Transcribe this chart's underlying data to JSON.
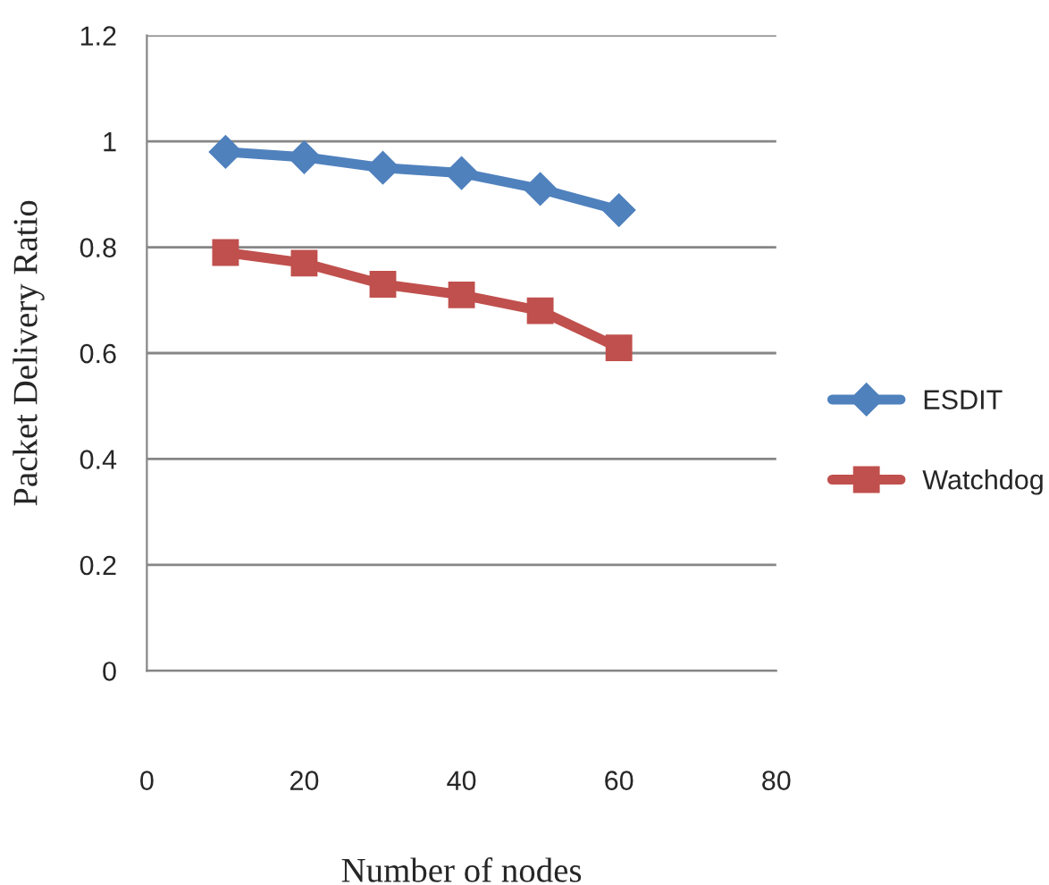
{
  "chart_data": {
    "type": "line",
    "xlabel": "Number of nodes",
    "ylabel": "Packet Delivery Ratio",
    "x": [
      10,
      20,
      30,
      40,
      50,
      60
    ],
    "series": [
      {
        "name": "ESDIT",
        "color": "#4f81bd",
        "marker": "diamond",
        "values": [
          0.98,
          0.97,
          0.95,
          0.94,
          0.91,
          0.87
        ]
      },
      {
        "name": "Watchdog",
        "color": "#c0504d",
        "marker": "square",
        "values": [
          0.79,
          0.77,
          0.73,
          0.71,
          0.68,
          0.61
        ]
      }
    ],
    "xlim": [
      0,
      80
    ],
    "xticks": [
      0,
      20,
      40,
      60,
      80
    ],
    "ylim": [
      0,
      1.2
    ],
    "yticks": [
      0,
      0.2,
      0.4,
      0.6,
      0.8,
      1,
      1.2
    ],
    "grid": "y",
    "legend": "right",
    "line_style": "solid"
  }
}
